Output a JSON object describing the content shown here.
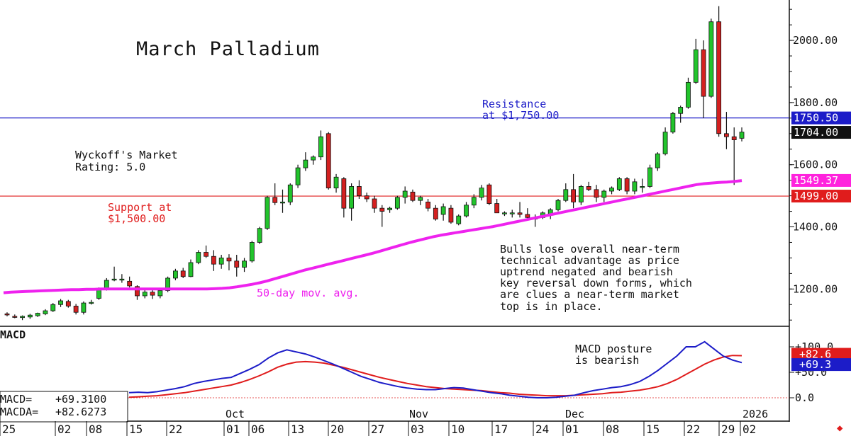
{
  "chart_data": [
    {
      "type": "candlestick",
      "title": "March Palladium",
      "y_axis": {
        "ticks": [
          "1200.00",
          "1400.00",
          "1600.00",
          "1800.00",
          "2000.00"
        ],
        "tick_values": [
          1200,
          1400,
          1600,
          1800,
          2000
        ],
        "range": [
          1080,
          2130
        ],
        "side": "right"
      },
      "x_axis": {
        "month_labels": [
          "Oct",
          "Nov",
          "Dec",
          "2026"
        ],
        "day_labels": [
          "25",
          "02",
          "08",
          "15",
          "22",
          "01",
          "06",
          "13",
          "20",
          "27",
          "03",
          "10",
          "17",
          "24",
          "01",
          "08",
          "15",
          "22",
          "29",
          "02"
        ]
      },
      "price_labels": [
        {
          "text": "1750.50",
          "value": 1750.5,
          "color": "#1c1cc8"
        },
        {
          "text": "1704.00",
          "value": 1704.0,
          "color": "#111111"
        },
        {
          "text": "1549.37",
          "value": 1549.37,
          "color": "#ff22dd"
        },
        {
          "text": "1499.00",
          "value": 1499.0,
          "color": "#e01c1c"
        }
      ],
      "reference_lines": [
        {
          "value": 1750.5,
          "color": "#1c1cc8"
        },
        {
          "value": 1499.0,
          "color": "#e01c1c"
        }
      ],
      "annotations": {
        "resistance": [
          "Resistance",
          "at $1,750.00"
        ],
        "rating": [
          "Wyckoff's Market",
          "Rating: 5.0"
        ],
        "support": [
          "Support at",
          "$1,500.00"
        ],
        "mov_avg": "50-day mov. avg.",
        "commentary": [
          "Bulls lose overall near-term",
          "technical advantage as price",
          "uptrend negated and bearish",
          "key reversal down forms, which",
          "are clues a near-term market",
          "top is in place."
        ]
      },
      "series": [
        {
          "name": "50-day mov. avg.",
          "color": "#ee22ee",
          "values": [
            1188,
            1190,
            1191,
            1192,
            1193,
            1194,
            1195,
            1196,
            1197,
            1198,
            1198,
            1199,
            1199,
            1200,
            1200,
            1200,
            1200,
            1200,
            1200,
            1200,
            1200,
            1200,
            1200,
            1200,
            1200,
            1200,
            1200,
            1200,
            1201,
            1202,
            1204,
            1207,
            1211,
            1215,
            1220,
            1226,
            1233,
            1240,
            1247,
            1254,
            1261,
            1267,
            1273,
            1279,
            1285,
            1291,
            1297,
            1303,
            1309,
            1315,
            1322,
            1329,
            1336,
            1343,
            1350,
            1356,
            1362,
            1368,
            1373,
            1377,
            1381,
            1385,
            1389,
            1393,
            1397,
            1401,
            1406,
            1411,
            1416,
            1421,
            1426,
            1431,
            1436,
            1441,
            1446,
            1451,
            1456,
            1461,
            1466,
            1471,
            1476,
            1481,
            1486,
            1491,
            1496,
            1501,
            1506,
            1511,
            1516,
            1521,
            1526,
            1531,
            1536,
            1539,
            1541,
            1543,
            1544,
            1546,
            1549
          ]
        }
      ],
      "candles": [
        {
          "o": 1120,
          "h": 1125,
          "l": 1112,
          "c": 1118
        },
        {
          "o": 1112,
          "h": 1118,
          "l": 1106,
          "c": 1110
        },
        {
          "o": 1108,
          "h": 1115,
          "l": 1100,
          "c": 1112
        },
        {
          "o": 1110,
          "h": 1120,
          "l": 1104,
          "c": 1116
        },
        {
          "o": 1114,
          "h": 1124,
          "l": 1110,
          "c": 1122
        },
        {
          "o": 1120,
          "h": 1135,
          "l": 1116,
          "c": 1130
        },
        {
          "o": 1130,
          "h": 1155,
          "l": 1126,
          "c": 1150
        },
        {
          "o": 1150,
          "h": 1168,
          "l": 1142,
          "c": 1162
        },
        {
          "o": 1160,
          "h": 1165,
          "l": 1140,
          "c": 1145
        },
        {
          "o": 1145,
          "h": 1152,
          "l": 1118,
          "c": 1125
        },
        {
          "o": 1125,
          "h": 1160,
          "l": 1118,
          "c": 1155
        },
        {
          "o": 1155,
          "h": 1165,
          "l": 1150,
          "c": 1157
        },
        {
          "o": 1170,
          "h": 1205,
          "l": 1165,
          "c": 1200
        },
        {
          "o": 1200,
          "h": 1235,
          "l": 1195,
          "c": 1228
        },
        {
          "o": 1230,
          "h": 1272,
          "l": 1225,
          "c": 1232
        },
        {
          "o": 1232,
          "h": 1248,
          "l": 1220,
          "c": 1232
        },
        {
          "o": 1225,
          "h": 1240,
          "l": 1205,
          "c": 1210
        },
        {
          "o": 1208,
          "h": 1212,
          "l": 1165,
          "c": 1178
        },
        {
          "o": 1178,
          "h": 1200,
          "l": 1170,
          "c": 1190
        },
        {
          "o": 1190,
          "h": 1198,
          "l": 1168,
          "c": 1180
        },
        {
          "o": 1178,
          "h": 1200,
          "l": 1170,
          "c": 1195
        },
        {
          "o": 1195,
          "h": 1240,
          "l": 1190,
          "c": 1235
        },
        {
          "o": 1235,
          "h": 1265,
          "l": 1228,
          "c": 1258
        },
        {
          "o": 1258,
          "h": 1268,
          "l": 1235,
          "c": 1240
        },
        {
          "o": 1240,
          "h": 1295,
          "l": 1238,
          "c": 1285
        },
        {
          "o": 1285,
          "h": 1325,
          "l": 1280,
          "c": 1318
        },
        {
          "o": 1318,
          "h": 1340,
          "l": 1300,
          "c": 1305
        },
        {
          "o": 1305,
          "h": 1325,
          "l": 1258,
          "c": 1280
        },
        {
          "o": 1280,
          "h": 1310,
          "l": 1265,
          "c": 1300
        },
        {
          "o": 1300,
          "h": 1312,
          "l": 1260,
          "c": 1290
        },
        {
          "o": 1290,
          "h": 1310,
          "l": 1240,
          "c": 1270
        },
        {
          "o": 1270,
          "h": 1300,
          "l": 1255,
          "c": 1290
        },
        {
          "o": 1290,
          "h": 1355,
          "l": 1285,
          "c": 1350
        },
        {
          "o": 1350,
          "h": 1400,
          "l": 1345,
          "c": 1395
        },
        {
          "o": 1395,
          "h": 1500,
          "l": 1390,
          "c": 1495
        },
        {
          "o": 1495,
          "h": 1540,
          "l": 1470,
          "c": 1478
        },
        {
          "o": 1478,
          "h": 1520,
          "l": 1445,
          "c": 1480
        },
        {
          "o": 1480,
          "h": 1540,
          "l": 1470,
          "c": 1535
        },
        {
          "o": 1535,
          "h": 1600,
          "l": 1525,
          "c": 1590
        },
        {
          "o": 1590,
          "h": 1640,
          "l": 1580,
          "c": 1615
        },
        {
          "o": 1615,
          "h": 1630,
          "l": 1600,
          "c": 1625
        },
        {
          "o": 1625,
          "h": 1710,
          "l": 1615,
          "c": 1690
        },
        {
          "o": 1700,
          "h": 1705,
          "l": 1520,
          "c": 1525
        },
        {
          "o": 1525,
          "h": 1570,
          "l": 1510,
          "c": 1560
        },
        {
          "o": 1555,
          "h": 1560,
          "l": 1430,
          "c": 1460
        },
        {
          "o": 1460,
          "h": 1540,
          "l": 1420,
          "c": 1530
        },
        {
          "o": 1530,
          "h": 1550,
          "l": 1490,
          "c": 1500
        },
        {
          "o": 1500,
          "h": 1510,
          "l": 1480,
          "c": 1490
        },
        {
          "o": 1490,
          "h": 1500,
          "l": 1445,
          "c": 1460
        },
        {
          "o": 1460,
          "h": 1470,
          "l": 1400,
          "c": 1450
        },
        {
          "o": 1455,
          "h": 1465,
          "l": 1445,
          "c": 1460
        },
        {
          "o": 1460,
          "h": 1500,
          "l": 1455,
          "c": 1495
        },
        {
          "o": 1495,
          "h": 1530,
          "l": 1475,
          "c": 1515
        },
        {
          "o": 1512,
          "h": 1520,
          "l": 1480,
          "c": 1485
        },
        {
          "o": 1485,
          "h": 1500,
          "l": 1470,
          "c": 1495
        },
        {
          "o": 1480,
          "h": 1490,
          "l": 1450,
          "c": 1460
        },
        {
          "o": 1460,
          "h": 1470,
          "l": 1420,
          "c": 1425
        },
        {
          "o": 1440,
          "h": 1475,
          "l": 1420,
          "c": 1465
        },
        {
          "o": 1460,
          "h": 1470,
          "l": 1410,
          "c": 1415
        },
        {
          "o": 1410,
          "h": 1440,
          "l": 1405,
          "c": 1435
        },
        {
          "o": 1435,
          "h": 1480,
          "l": 1430,
          "c": 1470
        },
        {
          "o": 1470,
          "h": 1505,
          "l": 1460,
          "c": 1495
        },
        {
          "o": 1495,
          "h": 1535,
          "l": 1485,
          "c": 1525
        },
        {
          "o": 1535,
          "h": 1540,
          "l": 1470,
          "c": 1475
        },
        {
          "o": 1475,
          "h": 1490,
          "l": 1445,
          "c": 1445
        },
        {
          "o": 1445,
          "h": 1450,
          "l": 1435,
          "c": 1445
        },
        {
          "o": 1445,
          "h": 1455,
          "l": 1430,
          "c": 1445
        },
        {
          "o": 1445,
          "h": 1480,
          "l": 1430,
          "c": 1440
        },
        {
          "o": 1440,
          "h": 1460,
          "l": 1425,
          "c": 1430
        },
        {
          "o": 1430,
          "h": 1440,
          "l": 1400,
          "c": 1425
        },
        {
          "o": 1430,
          "h": 1450,
          "l": 1425,
          "c": 1445
        },
        {
          "o": 1440,
          "h": 1460,
          "l": 1425,
          "c": 1455
        },
        {
          "o": 1455,
          "h": 1490,
          "l": 1450,
          "c": 1485
        },
        {
          "o": 1485,
          "h": 1540,
          "l": 1480,
          "c": 1520
        },
        {
          "o": 1520,
          "h": 1570,
          "l": 1460,
          "c": 1480
        },
        {
          "o": 1480,
          "h": 1535,
          "l": 1470,
          "c": 1530
        },
        {
          "o": 1530,
          "h": 1545,
          "l": 1515,
          "c": 1520
        },
        {
          "o": 1520,
          "h": 1535,
          "l": 1480,
          "c": 1495
        },
        {
          "o": 1495,
          "h": 1520,
          "l": 1480,
          "c": 1515
        },
        {
          "o": 1515,
          "h": 1530,
          "l": 1505,
          "c": 1525
        },
        {
          "o": 1520,
          "h": 1560,
          "l": 1515,
          "c": 1555
        },
        {
          "o": 1555,
          "h": 1560,
          "l": 1505,
          "c": 1515
        },
        {
          "o": 1515,
          "h": 1555,
          "l": 1505,
          "c": 1545
        },
        {
          "o": 1530,
          "h": 1555,
          "l": 1510,
          "c": 1530
        },
        {
          "o": 1530,
          "h": 1600,
          "l": 1525,
          "c": 1590
        },
        {
          "o": 1590,
          "h": 1640,
          "l": 1580,
          "c": 1635
        },
        {
          "o": 1635,
          "h": 1720,
          "l": 1630,
          "c": 1705
        },
        {
          "o": 1705,
          "h": 1770,
          "l": 1700,
          "c": 1765
        },
        {
          "o": 1765,
          "h": 1790,
          "l": 1735,
          "c": 1785
        },
        {
          "o": 1785,
          "h": 1880,
          "l": 1780,
          "c": 1865
        },
        {
          "o": 1865,
          "h": 2005,
          "l": 1860,
          "c": 1970
        },
        {
          "o": 1970,
          "h": 2000,
          "l": 1750,
          "c": 1820
        },
        {
          "o": 1820,
          "h": 2070,
          "l": 1815,
          "c": 2060
        },
        {
          "o": 2060,
          "h": 2110,
          "l": 1690,
          "c": 1700
        },
        {
          "o": 1700,
          "h": 1770,
          "l": 1650,
          "c": 1690
        },
        {
          "o": 1690,
          "h": 1720,
          "l": 1535,
          "c": 1680
        },
        {
          "o": 1685,
          "h": 1720,
          "l": 1675,
          "c": 1705
        }
      ]
    },
    {
      "type": "line",
      "title": "MACD",
      "y_axis": {
        "ticks": [
          "+100.0",
          "+50.0",
          "0.0"
        ],
        "tick_values": [
          100,
          50,
          0
        ],
        "range": [
          -5,
          113
        ],
        "side": "right"
      },
      "legend_values": [
        {
          "label": "MACD=",
          "value": "+69.3100"
        },
        {
          "label": "MACDA=",
          "value": "+82.6273"
        }
      ],
      "price_labels": [
        {
          "text": "+82.6",
          "value": 82.6,
          "color": "#e01c1c"
        },
        {
          "text": "+69.3",
          "value": 69.3,
          "color": "#1c1cc8"
        }
      ],
      "annotation": [
        "MACD posture",
        "is bearish"
      ],
      "series": [
        {
          "name": "MACD",
          "color": "#1c1cc8",
          "values": [
            10,
            11,
            10,
            12,
            15,
            18,
            22,
            28,
            32,
            35,
            38,
            40,
            48,
            56,
            65,
            78,
            88,
            94,
            90,
            86,
            80,
            73,
            66,
            58,
            50,
            42,
            36,
            30,
            26,
            22,
            19,
            17,
            16,
            16,
            18,
            20,
            19,
            16,
            13,
            10,
            8,
            5,
            3,
            1,
            0,
            0,
            1,
            3,
            5,
            10,
            14,
            17,
            20,
            22,
            26,
            32,
            42,
            54,
            68,
            82,
            100,
            100,
            110,
            96,
            82,
            74,
            69
          ]
        },
        {
          "name": "MACDA",
          "color": "#e01c1c",
          "values": [
            1,
            2,
            3,
            4,
            6,
            8,
            10,
            13,
            16,
            19,
            22,
            25,
            30,
            36,
            43,
            51,
            60,
            66,
            70,
            71,
            70,
            68,
            64,
            60,
            55,
            50,
            45,
            40,
            36,
            32,
            28,
            25,
            22,
            20,
            18,
            17,
            16,
            15,
            14,
            12,
            10,
            9,
            7,
            6,
            5,
            4,
            4,
            4,
            5,
            6,
            7,
            8,
            10,
            11,
            13,
            15,
            18,
            22,
            28,
            36,
            46,
            56,
            66,
            74,
            80,
            83,
            82.6
          ]
        }
      ]
    }
  ]
}
